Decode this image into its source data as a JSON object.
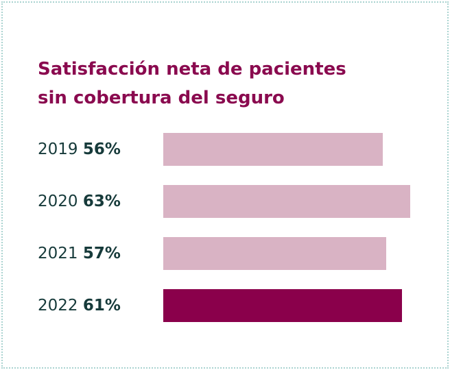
{
  "chart_data": {
    "type": "bar",
    "orientation": "horizontal",
    "title": "Satisfacción neta de pacientes sin cobertura del seguro",
    "categories": [
      "2019",
      "2020",
      "2021",
      "2022"
    ],
    "values": [
      56,
      63,
      57,
      61
    ],
    "value_labels": [
      "56%",
      "63%",
      "57%",
      "61%"
    ],
    "colors": [
      "#d9b3c4",
      "#d9b3c4",
      "#d9b3c4",
      "#8a004b"
    ]
  }
}
